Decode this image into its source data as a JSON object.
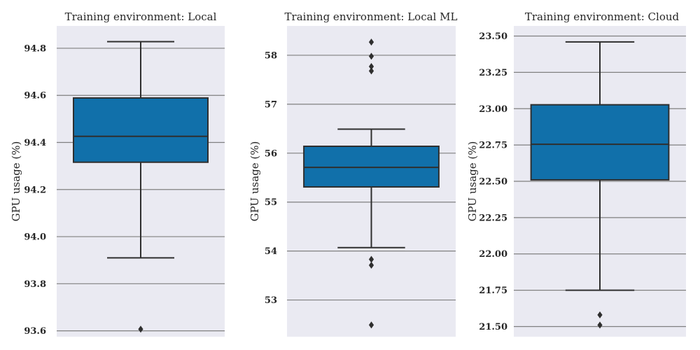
{
  "colors": {
    "panel_bg": "#eaeaf2",
    "grid": "#808080",
    "box_fill": "#1170aa",
    "line": "#2f2f2f"
  },
  "chart_data": [
    {
      "type": "box",
      "title": "Training environment: Local",
      "ylabel": "GPU usage (%)",
      "ylim": [
        93.575,
        94.895
      ],
      "yticks": [
        "93.6",
        "93.8",
        "94.0",
        "94.2",
        "94.4",
        "94.6",
        "94.8"
      ],
      "grid": true,
      "box": {
        "whisker_low": 93.91,
        "q1": 94.316,
        "median": 94.426,
        "q3": 94.589,
        "whisker_high": 94.828
      },
      "outliers": [
        93.607
      ]
    },
    {
      "type": "box",
      "title": "Training environment: Local ML",
      "ylabel": "GPU usage (%)",
      "ylim": [
        52.25,
        58.6
      ],
      "yticks": [
        "53",
        "54",
        "55",
        "56",
        "57",
        "58"
      ],
      "grid": true,
      "box": {
        "whisker_low": 54.07,
        "q1": 55.31,
        "median": 55.71,
        "q3": 56.14,
        "whisker_high": 56.49
      },
      "outliers": [
        58.27,
        57.98,
        57.77,
        57.68,
        53.83,
        53.71,
        52.49
      ]
    },
    {
      "type": "box",
      "title": "Training environment: Cloud",
      "ylabel": "GPU usage (%)",
      "ylim": [
        21.43,
        23.57
      ],
      "yticks": [
        "21.50",
        "21.75",
        "22.00",
        "22.25",
        "22.50",
        "22.75",
        "23.00",
        "23.25",
        "23.50"
      ],
      "grid": true,
      "box": {
        "whisker_low": 21.75,
        "q1": 22.51,
        "median": 22.755,
        "q3": 23.027,
        "whisker_high": 23.46
      },
      "outliers": [
        21.58,
        21.51
      ]
    }
  ]
}
